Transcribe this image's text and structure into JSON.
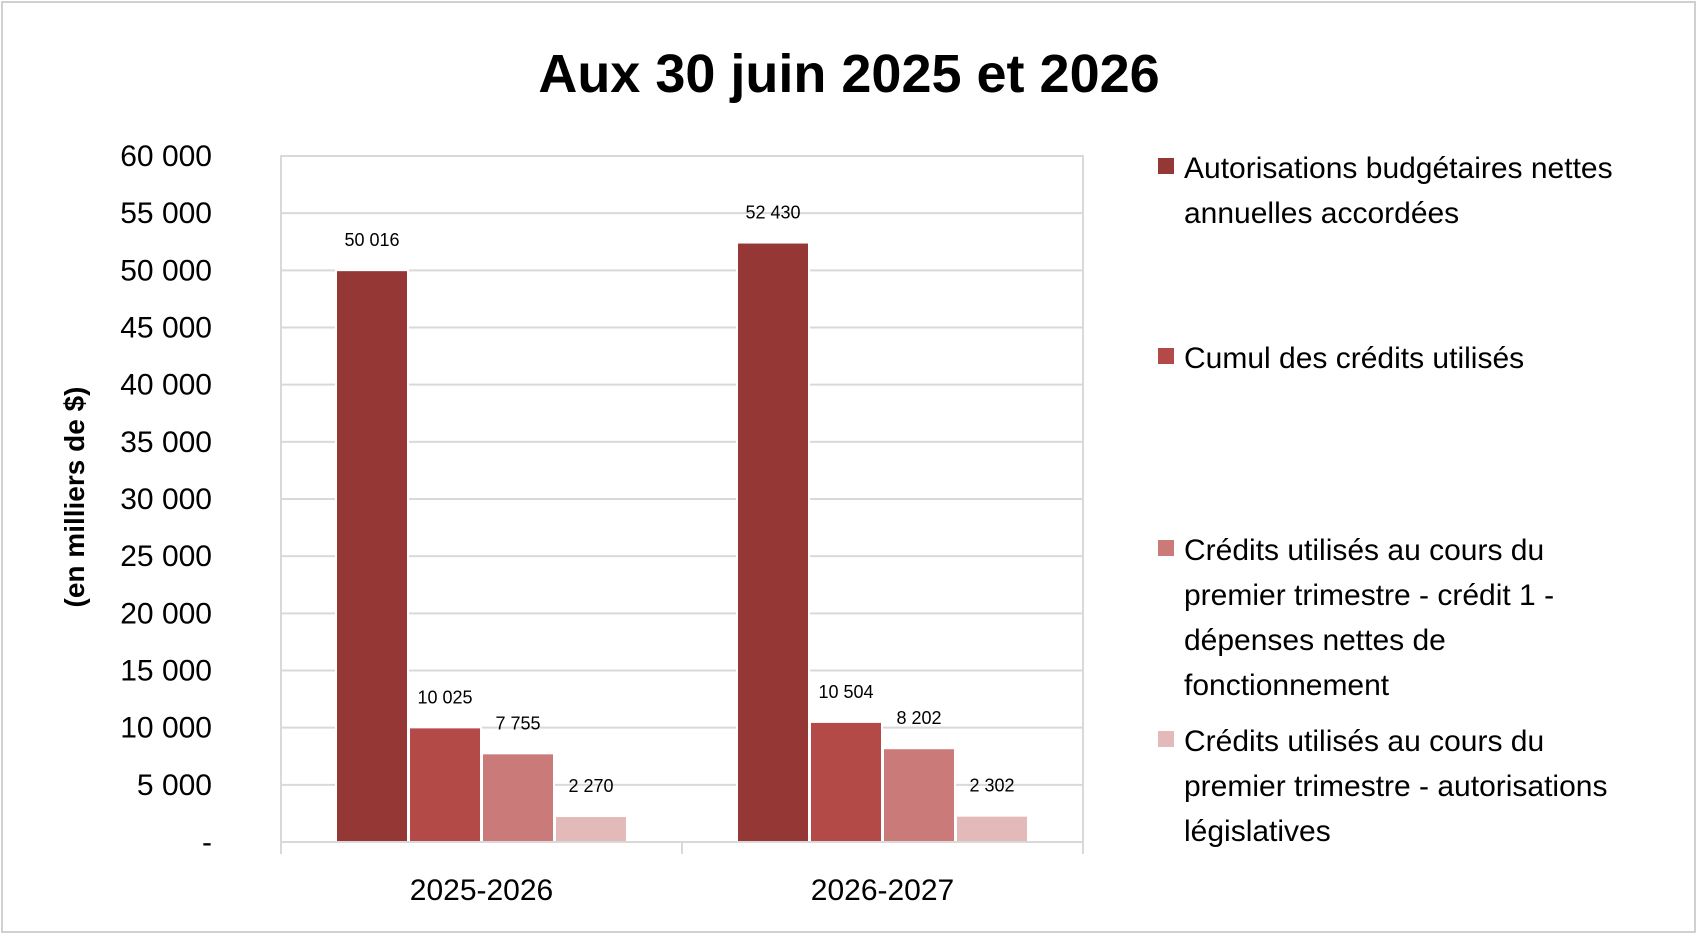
{
  "chart_data": {
    "type": "bar",
    "title": "Aux 30 juin 2025 et 2026",
    "xlabel": "",
    "ylabel": "(en milliers de $)",
    "ylim": [
      0,
      60000
    ],
    "yticks": [
      0,
      5000,
      10000,
      15000,
      20000,
      25000,
      30000,
      35000,
      40000,
      45000,
      50000,
      55000,
      60000
    ],
    "ytick_labels": [
      "-",
      "5 000",
      "10 000",
      "15 000",
      "20 000",
      "25 000",
      "30 000",
      "35 000",
      "40 000",
      "45 000",
      "50 000",
      "55 000",
      "60 000"
    ],
    "categories": [
      "2025-2026",
      "2026-2027"
    ],
    "grid": true,
    "legend_position": "right",
    "series": [
      {
        "name": "Autorisations budgétaires nettes annuelles accordées",
        "legend_lines": [
          "Autorisations budgétaires nettes",
          "annuelles accordées"
        ],
        "color": "#953735",
        "values": [
          50016,
          52430
        ],
        "labels": [
          "50 016",
          "52 430"
        ]
      },
      {
        "name": "Cumul des crédits utilisés",
        "legend_lines": [
          "Cumul des crédits utilisés"
        ],
        "color": "#b34a48",
        "values": [
          10025,
          10504
        ],
        "labels": [
          "10 025",
          "10 504"
        ]
      },
      {
        "name": "Crédits utilisés au cours du premier trimestre - crédit 1 - dépenses nettes de fonctionnement",
        "legend_lines": [
          "Crédits utilisés au cours du",
          "premier trimestre - crédit 1 -",
          "dépenses nettes de",
          "fonctionnement"
        ],
        "color": "#c97a79",
        "values": [
          7755,
          8202
        ],
        "labels": [
          "7 755",
          "8 202"
        ]
      },
      {
        "name": "Crédits utilisés au cours du premier trimestre - autorisations législatives",
        "legend_lines": [
          "Crédits utilisés au cours du",
          "premier trimestre - autorisations",
          "législatives"
        ],
        "color": "#e4b9b9",
        "values": [
          2270,
          2302
        ],
        "labels": [
          "2 270",
          "2 302"
        ]
      }
    ]
  }
}
